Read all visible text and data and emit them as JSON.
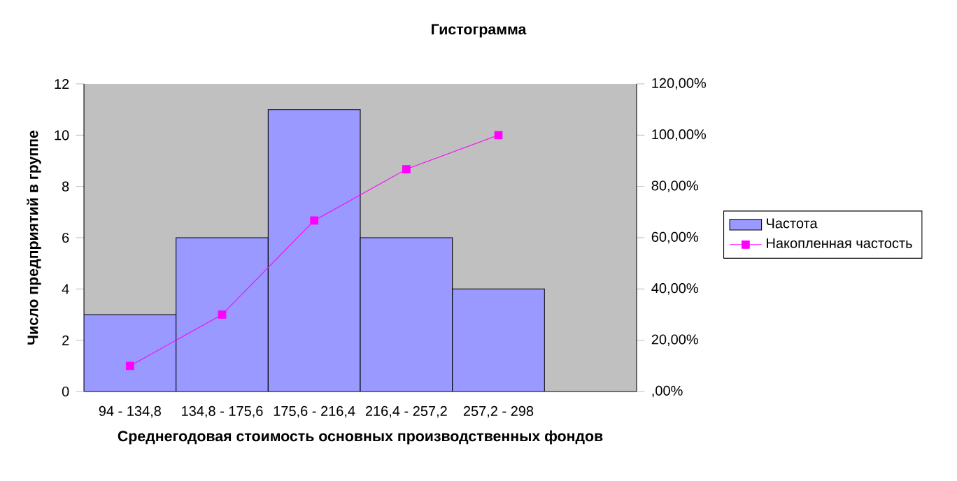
{
  "chart_data": {
    "type": "bar",
    "title": "Гистограмма",
    "xlabel": "Среднегодовая стоимость основных производственных фондов",
    "ylabel": "Число предприятий в группе",
    "categories": [
      "94 - 134,8",
      "134,8 - 175,6",
      "175,6 - 216,4",
      "216,4 - 257,2",
      "257,2 - 298",
      null
    ],
    "series": [
      {
        "name": "Частота",
        "color": "#9999ff",
        "values": [
          3,
          6,
          11,
          6,
          4,
          null
        ]
      },
      {
        "name": "Накопленная частость",
        "type": "line",
        "axis": "y2",
        "color": "#ff00ff",
        "values": [
          10,
          30,
          66.7,
          86.7,
          100,
          null
        ]
      }
    ],
    "ylim": [
      0,
      12
    ],
    "yticks": [
      0,
      2,
      4,
      6,
      8,
      10,
      12
    ],
    "y2lim": [
      0,
      120
    ],
    "y2ticks": [
      {
        "value": 0,
        "label": ",00%"
      },
      {
        "value": 20,
        "label": "20,00%"
      },
      {
        "value": 40,
        "label": "40,00%"
      },
      {
        "value": 60,
        "label": "60,00%"
      },
      {
        "value": 80,
        "label": "80,00%"
      },
      {
        "value": 100,
        "label": "100,00%"
      },
      {
        "value": 120,
        "label": "120,00%"
      }
    ],
    "marker": "square",
    "legend": "right",
    "grid": false
  }
}
